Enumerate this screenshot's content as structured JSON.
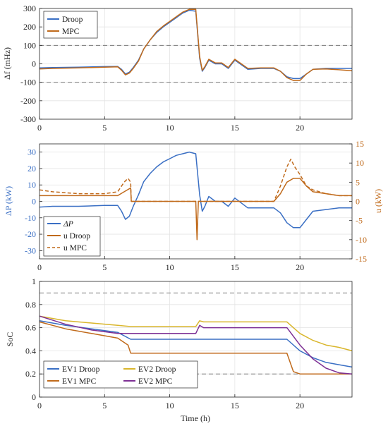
{
  "colors": {
    "blue": "#3a6fc4",
    "orange": "#c06a1b",
    "yellow": "#d9b62c",
    "purple": "#7d2f94",
    "axis": "#262626",
    "grid": "#e4e4e4",
    "ref": "#7a7a7a"
  },
  "chart_data": [
    {
      "type": "line",
      "ylabel": "Δf (mHz)",
      "xlim": [
        0,
        24
      ],
      "ylim": [
        -300,
        300
      ],
      "xticks": [
        0,
        5,
        10,
        15,
        20
      ],
      "yticks": [
        300,
        200,
        100,
        0,
        -100,
        -200,
        -300
      ],
      "grid": true,
      "legend_position": "top-left",
      "reference_lines": [
        100,
        -100
      ],
      "series": [
        {
          "name": "Droop",
          "color": "blue",
          "x": [
            0,
            1,
            3,
            5,
            6,
            6.3,
            6.6,
            6.9,
            7.2,
            7.6,
            8.0,
            8.5,
            9.0,
            9.5,
            10.0,
            10.5,
            11.0,
            11.5,
            12.0,
            12.3,
            12.5,
            12.7,
            13.0,
            13.5,
            14.0,
            14.5,
            15.0,
            16.0,
            17.0,
            18.0,
            18.5,
            19.0,
            19.5,
            20.0,
            20.5,
            21.0,
            22.0,
            23.0,
            24.0
          ],
          "y": [
            -22,
            -20,
            -18,
            -15,
            -14,
            -30,
            -55,
            -45,
            -20,
            20,
            80,
            130,
            170,
            200,
            225,
            250,
            275,
            290,
            285,
            30,
            -40,
            -20,
            20,
            0,
            0,
            -25,
            20,
            -30,
            -25,
            -25,
            -40,
            -70,
            -80,
            -80,
            -55,
            -30,
            -25,
            -25,
            -25
          ]
        },
        {
          "name": "MPC",
          "color": "orange",
          "x": [
            0,
            1,
            3,
            5,
            6,
            6.3,
            6.6,
            6.9,
            7.2,
            7.6,
            8.0,
            8.5,
            9.0,
            9.5,
            10.0,
            10.5,
            11.0,
            11.5,
            12.0,
            12.3,
            12.5,
            12.7,
            13.0,
            13.5,
            14.0,
            14.5,
            15.0,
            16.0,
            17.0,
            18.0,
            18.5,
            19.0,
            19.5,
            20.0,
            20.5,
            21.0,
            22.0,
            23.0,
            24.0
          ],
          "y": [
            -28,
            -25,
            -22,
            -18,
            -16,
            -35,
            -60,
            -50,
            -25,
            15,
            80,
            130,
            175,
            205,
            230,
            255,
            280,
            295,
            295,
            40,
            -35,
            -15,
            25,
            5,
            5,
            -20,
            25,
            -25,
            -22,
            -22,
            -40,
            -75,
            -90,
            -90,
            -55,
            -30,
            -28,
            -32,
            -38
          ]
        }
      ]
    },
    {
      "type": "line",
      "ylabel": "ΔP (kW)",
      "y2label": "u (kW)",
      "xlim": [
        0,
        24
      ],
      "ylim": [
        -35,
        35
      ],
      "y2lim": [
        -15,
        15
      ],
      "xticks": [
        0,
        5,
        10,
        15,
        20
      ],
      "yticks": [
        30,
        20,
        10,
        0,
        -10,
        -20,
        -30
      ],
      "y2ticks": [
        15,
        10,
        5,
        0,
        -5,
        -10,
        -15
      ],
      "grid": true,
      "legend_position": "bottom-left",
      "series": [
        {
          "name": "ΔP",
          "color": "blue",
          "axis": "left",
          "x": [
            0,
            1,
            3,
            5,
            6,
            6.3,
            6.6,
            6.9,
            7.2,
            7.6,
            8.0,
            8.5,
            9.0,
            9.5,
            10.0,
            10.5,
            11.0,
            11.5,
            12.0,
            12.3,
            12.5,
            12.7,
            13.0,
            13.5,
            14.0,
            14.5,
            15.0,
            16.0,
            17.0,
            18.0,
            18.5,
            19.0,
            19.5,
            20.0,
            20.5,
            21.0,
            22.0,
            23.0,
            24.0
          ],
          "y": [
            -3.5,
            -3,
            -3,
            -2.5,
            -2.5,
            -6,
            -11,
            -9,
            -3,
            4,
            12,
            17,
            21,
            24,
            26,
            28,
            29,
            30,
            29,
            4,
            -6,
            -3,
            3,
            0,
            0,
            -3,
            2,
            -4,
            -4,
            -4,
            -7,
            -13,
            -16,
            -16,
            -11,
            -6,
            -5,
            -4,
            -4
          ]
        },
        {
          "name": "u Droop",
          "color": "orange",
          "axis": "right",
          "x": [
            0,
            5,
            6,
            6.5,
            7,
            7.05,
            12,
            12.1,
            12.2,
            12.4,
            12.6,
            13,
            15,
            18,
            18.5,
            19,
            19.5,
            20,
            20.5,
            21,
            22,
            23,
            24
          ],
          "y": [
            1.5,
            1.5,
            1.5,
            2.5,
            3.5,
            0,
            0,
            -10,
            0,
            0,
            0,
            0,
            0,
            0,
            2,
            5,
            6,
            6,
            4,
            2.5,
            2,
            1.5,
            1.5
          ]
        },
        {
          "name": "u MPC",
          "color": "orange",
          "style": "dashed",
          "axis": "right",
          "x": [
            0,
            1,
            3,
            5,
            6,
            6.5,
            6.8,
            7.0,
            7.05,
            12,
            18,
            18.5,
            19,
            19.3,
            19.6,
            20,
            20.5,
            21,
            22,
            23,
            24
          ],
          "y": [
            3,
            2.5,
            2,
            2,
            2.5,
            5,
            6,
            5,
            0,
            0,
            0,
            4,
            9,
            11,
            9,
            7,
            4,
            3,
            2,
            1.5,
            1.5
          ]
        }
      ]
    },
    {
      "type": "line",
      "ylabel": "SoC",
      "xlabel": "Time (h)",
      "xlim": [
        0,
        24
      ],
      "ylim": [
        0,
        1
      ],
      "xticks": [
        0,
        5,
        10,
        15,
        20
      ],
      "yticks": [
        1,
        0.8,
        0.6,
        0.4,
        0.2,
        0
      ],
      "grid": true,
      "legend_position": "bottom-left",
      "reference_lines": [
        0.9,
        0.2
      ],
      "series": [
        {
          "name": "EV1 Droop",
          "color": "blue",
          "x": [
            0,
            2,
            4,
            6,
            7,
            12,
            17,
            19,
            20,
            21,
            22,
            23,
            24
          ],
          "y": [
            0.66,
            0.62,
            0.59,
            0.56,
            0.5,
            0.5,
            0.5,
            0.5,
            0.4,
            0.34,
            0.3,
            0.28,
            0.26
          ]
        },
        {
          "name": "EV1 MPC",
          "color": "orange",
          "x": [
            0,
            2,
            4,
            6,
            6.8,
            7,
            12,
            17,
            19,
            19.5,
            20,
            24
          ],
          "y": [
            0.65,
            0.59,
            0.55,
            0.51,
            0.45,
            0.38,
            0.38,
            0.38,
            0.38,
            0.22,
            0.2,
            0.2
          ]
        },
        {
          "name": "EV2 Droop",
          "color": "yellow",
          "x": [
            0,
            2,
            4,
            6,
            7,
            12,
            12.3,
            12.6,
            17,
            19,
            20,
            21,
            22,
            23,
            24
          ],
          "y": [
            0.7,
            0.66,
            0.64,
            0.62,
            0.61,
            0.61,
            0.66,
            0.65,
            0.65,
            0.65,
            0.55,
            0.49,
            0.45,
            0.43,
            0.4
          ]
        },
        {
          "name": "EV2 MPC",
          "color": "purple",
          "x": [
            0,
            2,
            4,
            6,
            7,
            12,
            12.3,
            12.6,
            17,
            19,
            20,
            21,
            22,
            23,
            24
          ],
          "y": [
            0.7,
            0.63,
            0.58,
            0.55,
            0.55,
            0.55,
            0.62,
            0.6,
            0.6,
            0.6,
            0.45,
            0.33,
            0.25,
            0.21,
            0.2
          ]
        }
      ]
    }
  ]
}
